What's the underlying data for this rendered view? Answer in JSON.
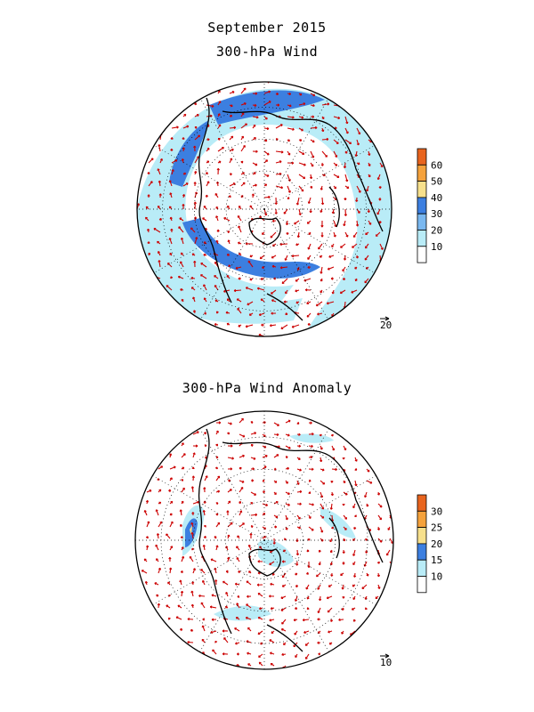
{
  "titles": {
    "date": "September 2015",
    "top_map": "300-hPa Wind",
    "bottom_map": "300-hPa Wind Anomaly"
  },
  "top_map": {
    "colorbar": {
      "labels": [
        "60",
        "50",
        "40",
        "30",
        "20",
        "10"
      ],
      "colors": [
        "#e8641e",
        "#f5a23c",
        "#f7e08c",
        "#3c7fe0",
        "#7ab8f0",
        "#b9ecf7",
        "#ffffff"
      ]
    },
    "reference_vector_label": "20"
  },
  "bottom_map": {
    "colorbar": {
      "labels": [
        "30",
        "25",
        "20",
        "15",
        "10"
      ],
      "colors": [
        "#e8641e",
        "#f5a23c",
        "#f7e08c",
        "#3c7fe0",
        "#b9ecf7",
        "#ffffff"
      ]
    },
    "reference_vector_label": "10"
  },
  "style": {
    "vector_color": "#cc0000",
    "coast_color": "#000000"
  }
}
